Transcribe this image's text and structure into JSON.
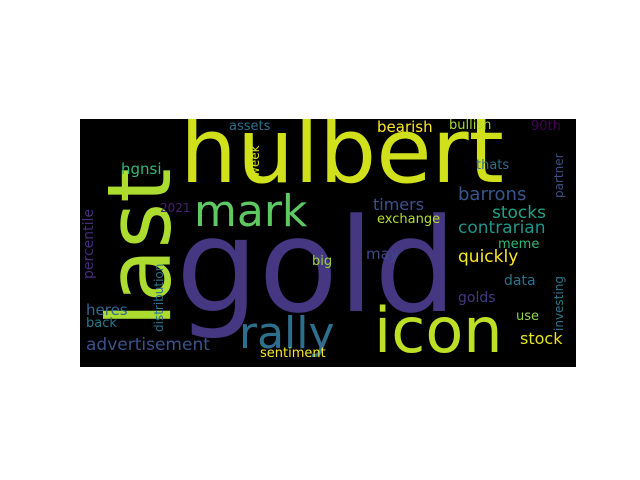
{
  "word_cloud": {
    "background": "#000000",
    "words": [
      {
        "text": "gold",
        "color": "#453781"
      },
      {
        "text": "hulbert",
        "color": "#d0e11c"
      },
      {
        "text": "last",
        "color": "#addc30"
      },
      {
        "text": "icon",
        "color": "#bddf26"
      },
      {
        "text": "rally",
        "color": "#2d708e"
      },
      {
        "text": "mark",
        "color": "#5ec962"
      },
      {
        "text": "barrons",
        "color": "#38588c"
      },
      {
        "text": "stocks",
        "color": "#20a486"
      },
      {
        "text": "contrarian",
        "color": "#1f968b"
      },
      {
        "text": "timers",
        "color": "#3b528b"
      },
      {
        "text": "quickly",
        "color": "#fde725"
      },
      {
        "text": "advertisement",
        "color": "#3b528b"
      },
      {
        "text": "bearish",
        "color": "#fde725"
      },
      {
        "text": "bullish",
        "color": "#a8db34"
      },
      {
        "text": "assets",
        "color": "#2d708e"
      },
      {
        "text": "90th",
        "color": "#440154"
      },
      {
        "text": "hgnsi",
        "color": "#35b779"
      },
      {
        "text": "percentile",
        "color": "#472c7a"
      },
      {
        "text": "heres",
        "color": "#31688e"
      },
      {
        "text": "may",
        "color": "#3e4989"
      },
      {
        "text": "meme",
        "color": "#35b779"
      },
      {
        "text": "data",
        "color": "#2c728e"
      },
      {
        "text": "golds",
        "color": "#443983"
      },
      {
        "text": "stock",
        "color": "#e5e419"
      },
      {
        "text": "use",
        "color": "#90d743"
      },
      {
        "text": "sentiment",
        "color": "#fde725"
      },
      {
        "text": "back",
        "color": "#2a788e"
      },
      {
        "text": "2021",
        "color": "#481f70"
      },
      {
        "text": "exchange",
        "color": "#b5de2b"
      },
      {
        "text": "big",
        "color": "#9bd93c"
      },
      {
        "text": "thats",
        "color": "#2d708e"
      },
      {
        "text": "week",
        "color": "#d8e219"
      },
      {
        "text": "distribution",
        "color": "#2c728e"
      },
      {
        "text": "partner",
        "color": "#3b528b"
      },
      {
        "text": "investing",
        "color": "#2a788e"
      }
    ]
  }
}
